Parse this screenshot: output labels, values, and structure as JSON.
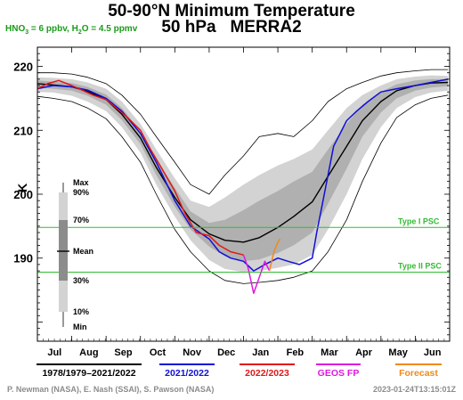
{
  "header": {
    "title_line1": "50-90°N Minimum Temperature",
    "title_line2_pressure": "50 hPa",
    "title_line2_source": "MERRA2",
    "assumption_hno3": "6 ppbv",
    "assumption_h2o": "4.5 ppmv"
  },
  "footer": {
    "credits": "P. Newman (NASA), E. Nash (SSAI), S. Pawson (NASA)",
    "timestamp": "2023-01-24T13:15:01Z"
  },
  "legend_box": {
    "labels": [
      "Max",
      "90%",
      "70%",
      "Mean",
      "30%",
      "10%",
      "Min"
    ]
  },
  "bottom_legend": [
    {
      "label": "1978/1979–2021/2022",
      "color": "#000000"
    },
    {
      "label": "2021/2022",
      "color": "#1010d8"
    },
    {
      "label": "2022/2023",
      "color": "#e01818"
    },
    {
      "label": "GEOS FP",
      "color": "#e018e0"
    },
    {
      "label": "Forecast",
      "color": "#f08a1a"
    }
  ],
  "colors": {
    "band_outer": "#d3d3d3",
    "band_mid": "#b0b0b0",
    "band_inner": "#8c8c8c",
    "psc_line": "#33bb33",
    "mean": "#000000"
  },
  "chart_data": {
    "type": "line",
    "title": "50-90°N Minimum Temperature 50 hPa MERRA2",
    "ylabel": "K",
    "xlabel": "",
    "ylim": [
      177,
      223
    ],
    "yticks": [
      190,
      200,
      210,
      220
    ],
    "month_labels": [
      "Jul",
      "Aug",
      "Sep",
      "Oct",
      "Nov",
      "Dec",
      "Jan",
      "Feb",
      "Mar",
      "Apr",
      "May",
      "Jun"
    ],
    "x": [
      "Jul 1",
      "Jul 15",
      "Aug 1",
      "Aug 15",
      "Sep 1",
      "Sep 15",
      "Oct 1",
      "Oct 15",
      "Nov 1",
      "Nov 15",
      "Dec 1",
      "Dec 15",
      "Jan 1",
      "Jan 15",
      "Feb 1",
      "Feb 15",
      "Mar 1",
      "Mar 15",
      "Apr 1",
      "Apr 15",
      "May 1",
      "May 15",
      "Jun 1",
      "Jun 15",
      "Jun 30"
    ],
    "climatology": {
      "max": [
        219.0,
        219.0,
        218.8,
        218.3,
        217.3,
        215.5,
        212.5,
        209.0,
        205.0,
        201.5,
        200.0,
        203.0,
        206.0,
        209.0,
        209.5,
        209.0,
        211.5,
        214.5,
        216.5,
        217.5,
        218.5,
        219.0,
        219.3,
        219.5,
        219.5
      ],
      "p90": [
        218.3,
        218.2,
        218.0,
        217.5,
        216.5,
        214.5,
        211.0,
        207.0,
        202.5,
        199.0,
        198.0,
        199.5,
        201.5,
        203.0,
        204.5,
        205.5,
        207.0,
        210.0,
        213.5,
        215.5,
        217.0,
        218.0,
        218.4,
        218.6,
        218.5
      ],
      "p70": [
        217.8,
        217.6,
        217.4,
        216.8,
        215.6,
        213.5,
        209.8,
        205.5,
        201.0,
        197.3,
        195.5,
        196.0,
        197.5,
        199.0,
        200.5,
        202.0,
        203.5,
        207.0,
        211.0,
        214.0,
        216.0,
        217.2,
        217.8,
        218.0,
        218.0
      ],
      "mean": [
        217.3,
        217.1,
        216.8,
        216.1,
        214.8,
        212.5,
        208.8,
        204.2,
        199.5,
        196.0,
        193.8,
        192.8,
        192.5,
        193.2,
        194.8,
        196.5,
        198.8,
        202.8,
        207.5,
        211.5,
        214.5,
        216.2,
        217.0,
        217.4,
        217.5
      ],
      "p30": [
        216.7,
        216.5,
        216.2,
        215.4,
        214.0,
        211.6,
        207.8,
        203.0,
        198.0,
        194.5,
        191.8,
        190.3,
        189.5,
        189.8,
        190.8,
        192.0,
        194.0,
        198.5,
        204.0,
        209.0,
        212.8,
        215.0,
        216.2,
        216.7,
        216.9
      ],
      "p10": [
        216.0,
        215.9,
        215.4,
        214.5,
        213.0,
        210.5,
        206.5,
        201.5,
        196.5,
        192.8,
        189.7,
        188.3,
        187.8,
        188.0,
        188.5,
        189.0,
        190.5,
        194.5,
        200.0,
        205.5,
        210.5,
        213.5,
        215.2,
        215.9,
        216.2
      ],
      "min": [
        215.3,
        215.0,
        214.5,
        213.5,
        211.8,
        209.0,
        205.0,
        200.0,
        194.5,
        191.0,
        188.0,
        186.5,
        186.0,
        186.2,
        186.5,
        187.0,
        188.0,
        191.0,
        196.0,
        202.0,
        208.0,
        212.0,
        214.0,
        215.0,
        215.5
      ]
    },
    "series": [
      {
        "name": "2021/2022",
        "color": "#1010d8",
        "x": [
          "Jul 1",
          "Jul 15",
          "Aug 1",
          "Aug 15",
          "Sep 1",
          "Sep 15",
          "Oct 1",
          "Oct 15",
          "Nov 1",
          "Nov 15",
          "Dec 1",
          "Dec 10",
          "Dec 20",
          "Jan 1",
          "Jan 10",
          "Jan 20",
          "Feb 1",
          "Feb 10",
          "Feb 20",
          "Mar 1",
          "Mar 5",
          "Mar 10",
          "Mar 15",
          "Mar 20",
          "Apr 1",
          "Apr 10",
          "Apr 20",
          "May 1",
          "May 15",
          "Jun 1",
          "Jun 15",
          "Jun 30"
        ],
        "values": [
          216.5,
          217.0,
          216.8,
          216.3,
          215.0,
          213.0,
          209.5,
          205.0,
          199.0,
          195.0,
          193.0,
          191.0,
          190.0,
          189.5,
          188.0,
          189.0,
          190.0,
          189.5,
          189.0,
          190.0,
          194.0,
          198.5,
          203.0,
          207.5,
          211.5,
          213.0,
          214.5,
          216.0,
          216.5,
          217.0,
          217.5,
          218.0
        ]
      },
      {
        "name": "2022/2023",
        "color": "#e01818",
        "x": [
          "Jul 1",
          "Jul 10",
          "Jul 20",
          "Aug 1",
          "Aug 10",
          "Aug 20",
          "Sep 1",
          "Sep 10",
          "Sep 20",
          "Oct 1",
          "Oct 10",
          "Oct 20",
          "Nov 1",
          "Nov 10",
          "Nov 20",
          "Dec 1",
          "Dec 10",
          "Dec 20",
          "Jan 1"
        ],
        "values": [
          216.5,
          217.3,
          217.8,
          217.0,
          216.3,
          215.5,
          214.8,
          213.5,
          212.0,
          210.0,
          207.0,
          204.0,
          200.5,
          197.0,
          194.0,
          193.5,
          192.0,
          191.0,
          190.5
        ]
      },
      {
        "name": "GEOS FP",
        "color": "#e018e0",
        "x": [
          "Jan 1",
          "Jan 5",
          "Jan 10",
          "Jan 15",
          "Jan 20",
          "Jan 24"
        ],
        "values": [
          190.5,
          188.5,
          184.5,
          187.0,
          189.5,
          188.0
        ]
      },
      {
        "name": "Forecast",
        "color": "#f08a1a",
        "x": [
          "Jan 24",
          "Jan 28",
          "Feb 1",
          "Feb 3"
        ],
        "values": [
          188.0,
          191.0,
          192.5,
          193.0
        ]
      }
    ],
    "reference_lines": [
      {
        "label": "Type I PSC",
        "value": 194.8
      },
      {
        "label": "Type II PSC",
        "value": 187.8
      }
    ]
  }
}
